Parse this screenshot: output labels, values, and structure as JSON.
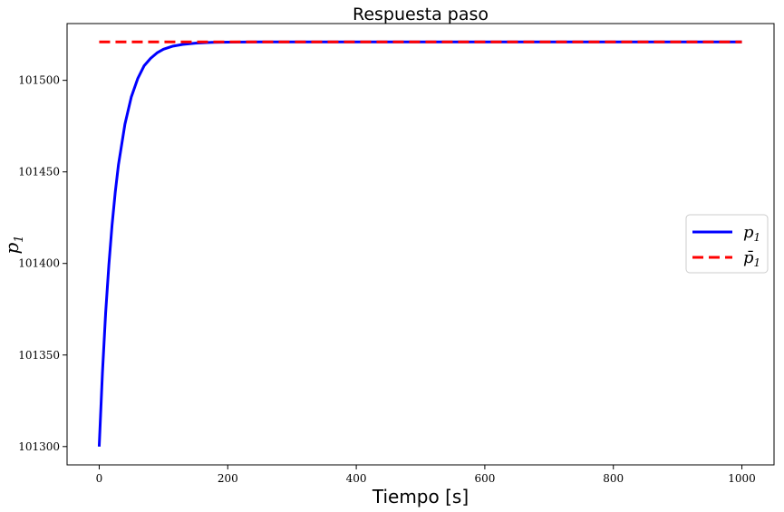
{
  "chart_data": {
    "type": "line",
    "title": "Respuesta paso",
    "xlabel": "Tiempo [s]",
    "ylabel": "p",
    "ylabel_subscript": "1",
    "xlim": [
      -50,
      1050
    ],
    "ylim": [
      101290,
      101531
    ],
    "x_ticks": [
      0,
      200,
      400,
      600,
      800,
      1000
    ],
    "y_ticks": [
      101300,
      101350,
      101400,
      101450,
      101500
    ],
    "grid": false,
    "legend_position": "center-right",
    "series": [
      {
        "name": "p",
        "name_subscript": "1",
        "color": "#0000ff",
        "style": "solid",
        "x": [
          0,
          5,
          10,
          15,
          20,
          25,
          30,
          40,
          50,
          60,
          70,
          80,
          90,
          100,
          115,
          130,
          150,
          175,
          200,
          225,
          250,
          300,
          350,
          400,
          500,
          600,
          700,
          800,
          900,
          1000
        ],
        "y": [
          101300,
          101340,
          101373,
          101399,
          101421,
          101439,
          101454,
          101476,
          101491,
          101501,
          101508,
          101512,
          101515,
          101517,
          101518.7,
          101519.6,
          101520.3,
          101520.7,
          101520.85,
          101520.93,
          101520.97,
          101521,
          101521,
          101521,
          101521,
          101521,
          101521,
          101521,
          101521,
          101521
        ]
      },
      {
        "name": "p̄",
        "name_subscript": "1",
        "color": "#ff0000",
        "style": "dashed",
        "x": [
          0,
          1000
        ],
        "y": [
          101521,
          101521
        ]
      }
    ]
  }
}
